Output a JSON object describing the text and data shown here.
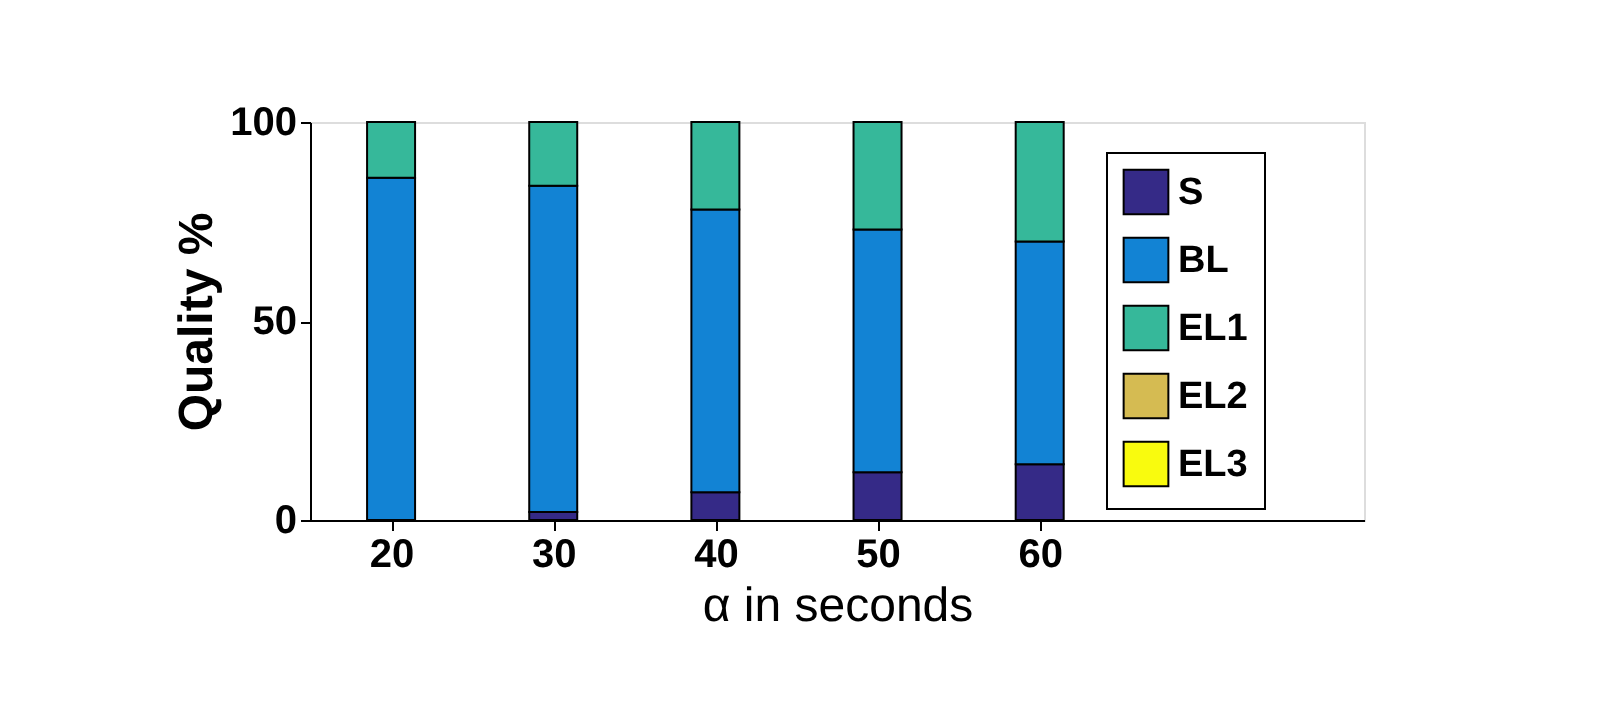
{
  "chart_data": {
    "type": "bar",
    "stacked": true,
    "xlabel": "α in seconds",
    "ylabel": "Quality %",
    "x": [
      20,
      30,
      40,
      50,
      60
    ],
    "series": [
      {
        "name": "S",
        "color": "#352a87",
        "values": [
          0,
          2,
          7,
          12,
          14
        ]
      },
      {
        "name": "BL",
        "color": "#1283d4",
        "values": [
          86,
          82,
          71,
          61,
          56
        ]
      },
      {
        "name": "EL1",
        "color": "#36b89a",
        "values": [
          14,
          16,
          22,
          27,
          30
        ]
      },
      {
        "name": "EL2",
        "color": "#d5bb52",
        "values": [
          0,
          0,
          0,
          0,
          0
        ]
      },
      {
        "name": "EL3",
        "color": "#f9fb0e",
        "values": [
          0,
          0,
          0,
          0,
          0
        ]
      }
    ],
    "xlim": [
      15,
      80
    ],
    "xticks": [
      20,
      30,
      40,
      50,
      60
    ],
    "ylim": [
      0,
      100
    ],
    "yticks": [
      0,
      50,
      100
    ],
    "grid": false,
    "legend": "right"
  }
}
